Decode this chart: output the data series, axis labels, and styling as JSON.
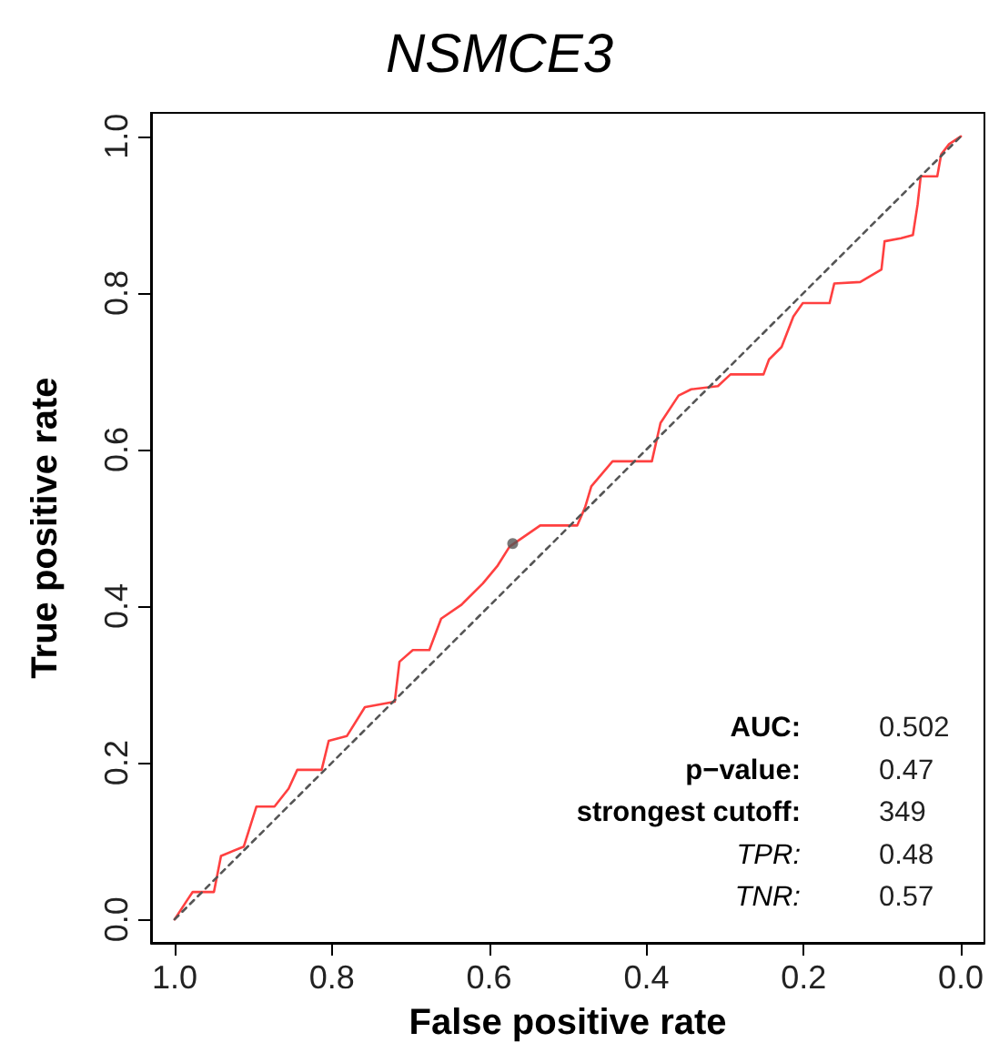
{
  "chart_data": {
    "type": "line",
    "title": "NSMCE3",
    "xlabel": "False positive rate",
    "ylabel": "True positive rate",
    "xlim": [
      1.03,
      -0.03
    ],
    "ylim": [
      -0.03,
      1.03
    ],
    "xticks": [
      {
        "value": 1,
        "label": "1.0"
      },
      {
        "value": 0.8,
        "label": "0.8"
      },
      {
        "value": 0.6,
        "label": "0.6"
      },
      {
        "value": 0.4,
        "label": "0.4"
      },
      {
        "value": 0.2,
        "label": "0.2"
      },
      {
        "value": 0,
        "label": "0.0"
      }
    ],
    "yticks": [
      {
        "value": 0,
        "label": "0.0"
      },
      {
        "value": 0.2,
        "label": "0.2"
      },
      {
        "value": 0.4,
        "label": "0.4"
      },
      {
        "value": 0.6,
        "label": "0.6"
      },
      {
        "value": 0.8,
        "label": "0.8"
      },
      {
        "value": 1,
        "label": "1.0"
      }
    ],
    "grid": false,
    "series": [
      {
        "color": "#ff4040",
        "x": [
          1.0,
          0.985,
          0.977,
          0.95,
          0.941,
          0.912,
          0.896,
          0.873,
          0.855,
          0.844,
          0.813,
          0.804,
          0.781,
          0.758,
          0.72,
          0.714,
          0.697,
          0.676,
          0.661,
          0.635,
          0.608,
          0.589,
          0.574,
          0.535,
          0.488,
          0.478,
          0.47,
          0.443,
          0.393,
          0.382,
          0.359,
          0.343,
          0.309,
          0.293,
          0.251,
          0.244,
          0.228,
          0.213,
          0.201,
          0.167,
          0.161,
          0.128,
          0.101,
          0.097,
          0.076,
          0.061,
          0.055,
          0.051,
          0.03,
          0.025,
          0.015,
          0.0
        ],
        "values": [
          0.0,
          0.023,
          0.035,
          0.035,
          0.081,
          0.093,
          0.144,
          0.144,
          0.167,
          0.191,
          0.191,
          0.228,
          0.234,
          0.271,
          0.278,
          0.329,
          0.344,
          0.344,
          0.384,
          0.402,
          0.429,
          0.452,
          0.476,
          0.503,
          0.503,
          0.526,
          0.553,
          0.585,
          0.585,
          0.634,
          0.669,
          0.677,
          0.681,
          0.696,
          0.696,
          0.715,
          0.731,
          0.77,
          0.787,
          0.787,
          0.812,
          0.814,
          0.83,
          0.866,
          0.87,
          0.874,
          0.913,
          0.949,
          0.949,
          0.977,
          0.99,
          1.0
        ]
      },
      {
        "type": "line",
        "line_style": "dashed",
        "color": "#555555",
        "x": [
          1,
          0
        ],
        "values": [
          0,
          1
        ]
      },
      {
        "type": "scatter",
        "marker": "circle",
        "color": "#555555",
        "x": [
          0.57
        ],
        "values": [
          0.48
        ]
      }
    ],
    "annotations": [
      "AUC:",
      "0.502",
      "p−value:",
      "0.47",
      "strongest cutoff:",
      "349",
      "TPR:",
      "0.48",
      "TNR:",
      "0.57"
    ]
  }
}
